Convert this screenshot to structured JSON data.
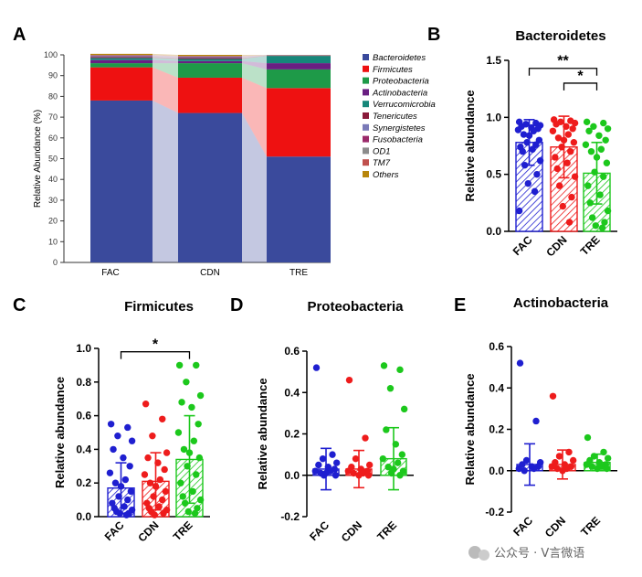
{
  "watermark": "公众号 · V言微语",
  "colors": {
    "FAC": "#1f1fd0",
    "CDN": "#ee1c1c",
    "TRE": "#1cc81c"
  },
  "chart_data": [
    {
      "panel": "A",
      "type": "bar",
      "stacked": true,
      "ylabel": "Relative Abundance (%)",
      "ylim": [
        0,
        100
      ],
      "yticks": [
        "0",
        "10",
        "20",
        "30",
        "40",
        "50",
        "60",
        "70",
        "80",
        "90",
        "100"
      ],
      "categories": [
        "FAC",
        "CDN",
        "TRE"
      ],
      "legend_position": "right",
      "series": [
        {
          "name": "Bacteroidetes",
          "color": "#3a4a9c",
          "values": [
            78,
            72,
            51
          ]
        },
        {
          "name": "Firmicutes",
          "color": "#ee1111",
          "values": [
            16,
            17,
            33
          ]
        },
        {
          "name": "Proteobacteria",
          "color": "#1e9a48",
          "values": [
            2,
            7,
            9
          ]
        },
        {
          "name": "Actinobacteria",
          "color": "#6a1f82",
          "values": [
            1.5,
            1,
            3
          ]
        },
        {
          "name": "Verrucomicrobia",
          "color": "#16877a",
          "values": [
            1,
            1,
            3.5
          ]
        },
        {
          "name": "Tenericutes",
          "color": "#8a1a3a",
          "values": [
            0.5,
            0.5,
            0.2
          ]
        },
        {
          "name": "Synergistetes",
          "color": "#7a7ab8",
          "values": [
            0.4,
            0.4,
            0.1
          ]
        },
        {
          "name": "Fusobacteria",
          "color": "#9b2a6a",
          "values": [
            0.2,
            0.2,
            0.05
          ]
        },
        {
          "name": "OD1",
          "color": "#8c8c8c",
          "values": [
            0.2,
            0.2,
            0.05
          ]
        },
        {
          "name": "TM7",
          "color": "#c0504d",
          "values": [
            0.2,
            0.2,
            0.05
          ]
        },
        {
          "name": "Others",
          "color": "#b8860b",
          "values": [
            0.5,
            0.5,
            0.05
          ]
        }
      ]
    },
    {
      "panel": "B",
      "type": "bar",
      "title": "Bacteroidetes",
      "ylabel": "Relative abundance",
      "ylim": [
        0,
        1.5
      ],
      "yticks": [
        "0.0",
        "0.5",
        "1.0",
        "1.5"
      ],
      "categories": [
        "FAC",
        "CDN",
        "TRE"
      ],
      "values": [
        0.78,
        0.74,
        0.51
      ],
      "sd": [
        0.2,
        0.27,
        0.27
      ],
      "points": [
        [
          0.96,
          0.95,
          0.94,
          0.93,
          0.92,
          0.91,
          0.9,
          0.89,
          0.88,
          0.85,
          0.84,
          0.8,
          0.78,
          0.76,
          0.74,
          0.72,
          0.7,
          0.62,
          0.58,
          0.5,
          0.42,
          0.35,
          0.18
        ],
        [
          0.98,
          0.97,
          0.96,
          0.95,
          0.94,
          0.92,
          0.9,
          0.88,
          0.85,
          0.82,
          0.8,
          0.78,
          0.74,
          0.7,
          0.65,
          0.6,
          0.55,
          0.48,
          0.4,
          0.3,
          0.22,
          0.08
        ],
        [
          0.96,
          0.95,
          0.92,
          0.9,
          0.88,
          0.84,
          0.8,
          0.76,
          0.72,
          0.7,
          0.65,
          0.6,
          0.52,
          0.48,
          0.4,
          0.32,
          0.25,
          0.18,
          0.12,
          0.08,
          0.05,
          0.03
        ]
      ],
      "significance": [
        {
          "from": "FAC",
          "to": "TRE",
          "label": "**"
        },
        {
          "from": "CDN",
          "to": "TRE",
          "label": "*"
        }
      ]
    },
    {
      "panel": "C",
      "type": "bar",
      "title": "Firmicutes",
      "ylabel": "Relative abundance",
      "ylim": [
        0,
        1.0
      ],
      "yticks": [
        "0.0",
        "0.2",
        "0.4",
        "0.6",
        "0.8",
        "1.0"
      ],
      "categories": [
        "FAC",
        "CDN",
        "TRE"
      ],
      "values": [
        0.17,
        0.21,
        0.34
      ],
      "sd": [
        0.15,
        0.17,
        0.26
      ],
      "points": [
        [
          0.55,
          0.53,
          0.48,
          0.45,
          0.4,
          0.35,
          0.3,
          0.26,
          0.22,
          0.2,
          0.18,
          0.15,
          0.12,
          0.1,
          0.08,
          0.06,
          0.05,
          0.04,
          0.03,
          0.02,
          0.02,
          0.01
        ],
        [
          0.67,
          0.58,
          0.48,
          0.38,
          0.35,
          0.32,
          0.28,
          0.25,
          0.22,
          0.2,
          0.18,
          0.15,
          0.12,
          0.1,
          0.08,
          0.06,
          0.05,
          0.04,
          0.03,
          0.02,
          0.01
        ],
        [
          0.9,
          0.9,
          0.8,
          0.72,
          0.68,
          0.65,
          0.55,
          0.5,
          0.45,
          0.4,
          0.38,
          0.35,
          0.3,
          0.25,
          0.2,
          0.15,
          0.12,
          0.1,
          0.08,
          0.05,
          0.03,
          0.02
        ]
      ],
      "significance": [
        {
          "from": "FAC",
          "to": "TRE",
          "label": "*"
        }
      ]
    },
    {
      "panel": "D",
      "type": "bar",
      "title": "Proteobacteria",
      "ylabel": "Relative abundance",
      "ylim": [
        -0.2,
        0.6
      ],
      "yticks": [
        "-0.2",
        "0.0",
        "0.2",
        "0.4",
        "0.6"
      ],
      "categories": [
        "FAC",
        "CDN",
        "TRE"
      ],
      "values": [
        0.03,
        0.03,
        0.08
      ],
      "sd": [
        0.1,
        0.09,
        0.15
      ],
      "points": [
        [
          0.52,
          0.1,
          0.08,
          0.06,
          0.05,
          0.04,
          0.03,
          0.02,
          0.02,
          0.01,
          0.01,
          0.0,
          0.0
        ],
        [
          0.46,
          0.18,
          0.08,
          0.05,
          0.04,
          0.03,
          0.02,
          0.02,
          0.01,
          0.01,
          0.0,
          0.0
        ],
        [
          0.53,
          0.51,
          0.42,
          0.32,
          0.22,
          0.15,
          0.1,
          0.08,
          0.06,
          0.04,
          0.03,
          0.02,
          0.01,
          0.0
        ]
      ],
      "significance": []
    },
    {
      "panel": "E",
      "type": "bar",
      "title": "Actinobacteria",
      "ylabel": "Relative abundance",
      "ylim": [
        -0.2,
        0.6
      ],
      "yticks": [
        "-0.2",
        "0.0",
        "0.2",
        "0.4",
        "0.6"
      ],
      "categories": [
        "FAC",
        "CDN",
        "TRE"
      ],
      "values": [
        0.03,
        0.03,
        0.04
      ],
      "sd": [
        0.1,
        0.07,
        0.04
      ],
      "points": [
        [
          0.52,
          0.24,
          0.05,
          0.04,
          0.03,
          0.02,
          0.02,
          0.01,
          0.01,
          0.0
        ],
        [
          0.36,
          0.09,
          0.07,
          0.05,
          0.04,
          0.03,
          0.02,
          0.02,
          0.01,
          0.01,
          0.0
        ],
        [
          0.16,
          0.09,
          0.07,
          0.06,
          0.05,
          0.04,
          0.03,
          0.03,
          0.02,
          0.02,
          0.01,
          0.01
        ]
      ],
      "significance": []
    }
  ]
}
